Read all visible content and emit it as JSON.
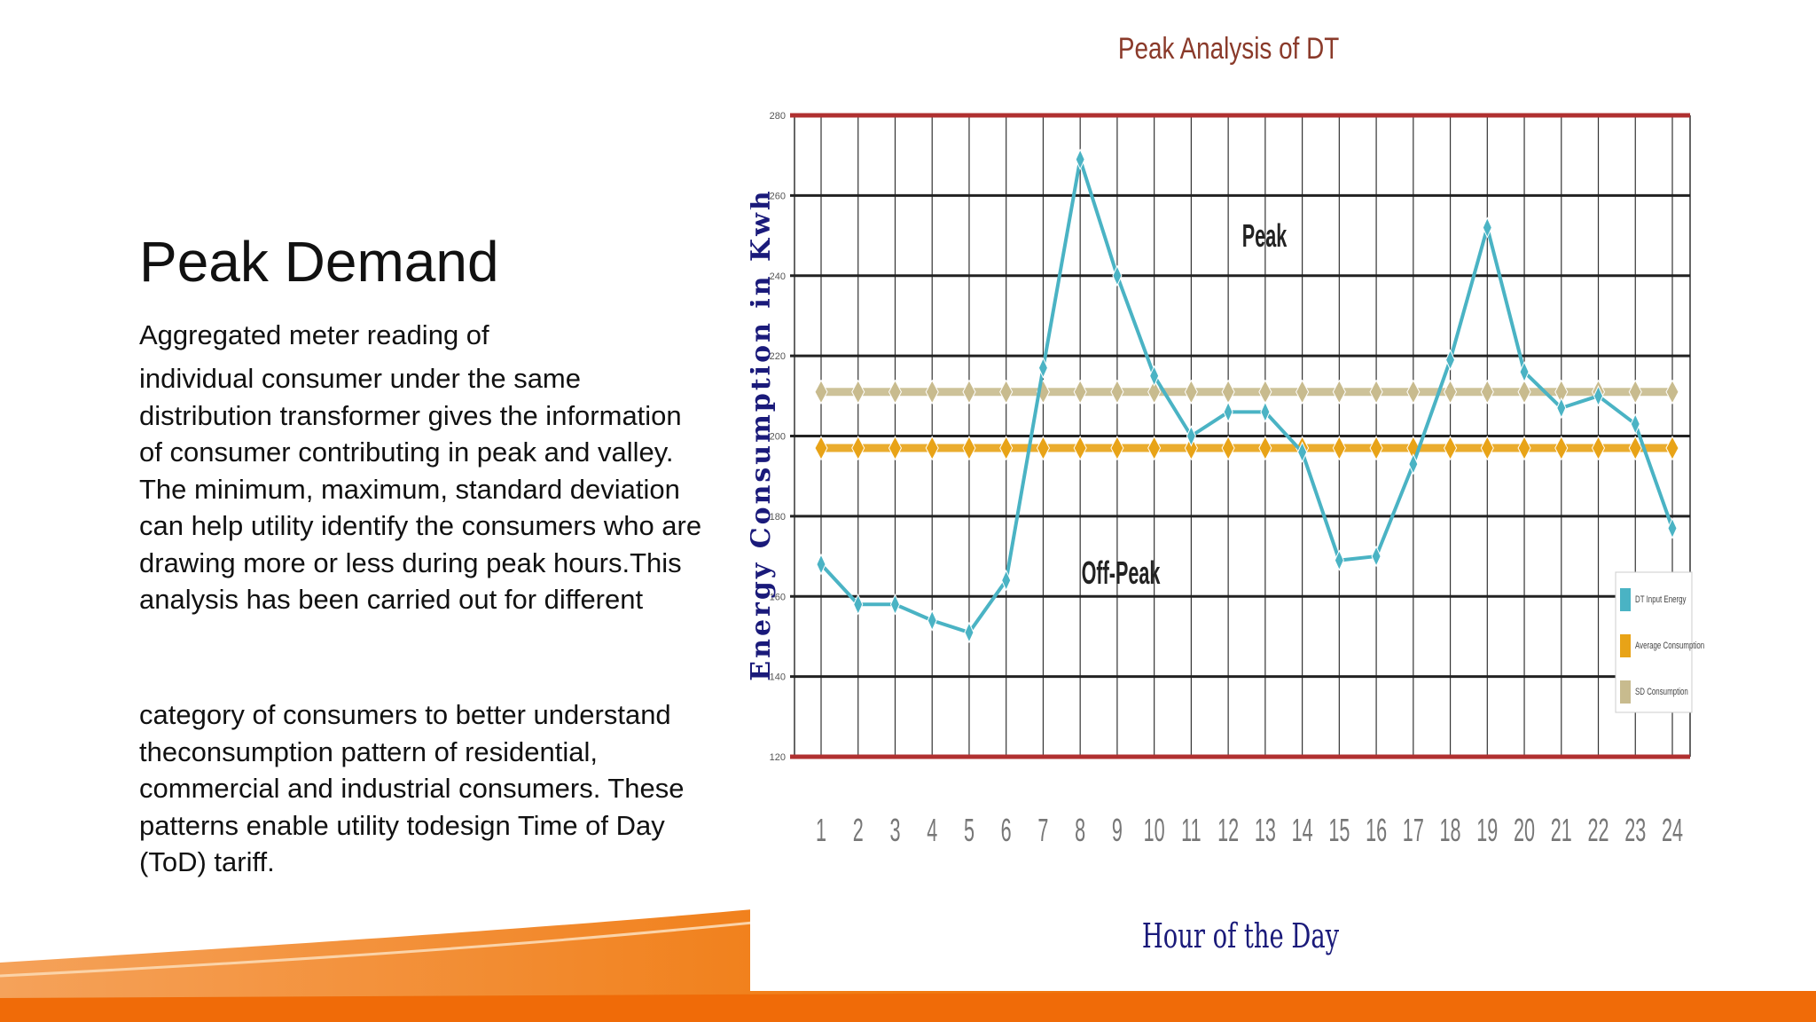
{
  "slide": {
    "title": "Peak Demand",
    "paragraph1": "Aggregated meter reading of",
    "paragraph2": "individual consumer under the same distribution transformer gives the information of consumer contributing in peak and valley. The minimum, maximum, standard deviation can help utility identify the consumers who are drawing more or less during peak hours.This analysis has been carried out for different",
    "paragraph3": "category of consumers to better understand theconsumption pattern of residential, commercial and industrial consumers. These patterns enable utility todesign Time of Day (ToD) tariff."
  },
  "colors": {
    "dt_line": "#4ab3c4",
    "average": "#e8a317",
    "sd": "#c8bb8e",
    "boundary": "#b03030",
    "grid": "#222222",
    "axis_text": "#1a1a7a",
    "accent_orange": "#f07a10"
  },
  "chart_data": {
    "type": "line",
    "title": "Peak Analysis of DT",
    "xlabel": "Hour of the Day",
    "ylabel": "Energy Consumption in Kwh",
    "x": [
      1,
      2,
      3,
      4,
      5,
      6,
      7,
      8,
      9,
      10,
      11,
      12,
      13,
      14,
      15,
      16,
      17,
      18,
      19,
      20,
      21,
      22,
      23,
      24
    ],
    "ylim": [
      120,
      280
    ],
    "yticks": [
      120,
      140,
      160,
      180,
      200,
      220,
      240,
      260,
      280
    ],
    "grid": true,
    "legend_position": "right",
    "series": [
      {
        "name": "DT Input Energy",
        "color": "#4ab3c4",
        "values": [
          168,
          158,
          158,
          154,
          151,
          164,
          217,
          269,
          240,
          215,
          200,
          206,
          206,
          196,
          169,
          170,
          193,
          219,
          252,
          216,
          207,
          210,
          203,
          177
        ]
      },
      {
        "name": "Average Consumption",
        "color": "#e8a317",
        "values": [
          197,
          197,
          197,
          197,
          197,
          197,
          197,
          197,
          197,
          197,
          197,
          197,
          197,
          197,
          197,
          197,
          197,
          197,
          197,
          197,
          197,
          197,
          197,
          197
        ]
      },
      {
        "name": "SD Consumption",
        "color": "#c8bb8e",
        "values": [
          211,
          211,
          211,
          211,
          211,
          211,
          211,
          211,
          211,
          211,
          211,
          211,
          211,
          211,
          211,
          211,
          211,
          211,
          211,
          211,
          211,
          211,
          211,
          211
        ]
      }
    ],
    "annotations": [
      "Peak",
      "Off-Peak"
    ]
  }
}
